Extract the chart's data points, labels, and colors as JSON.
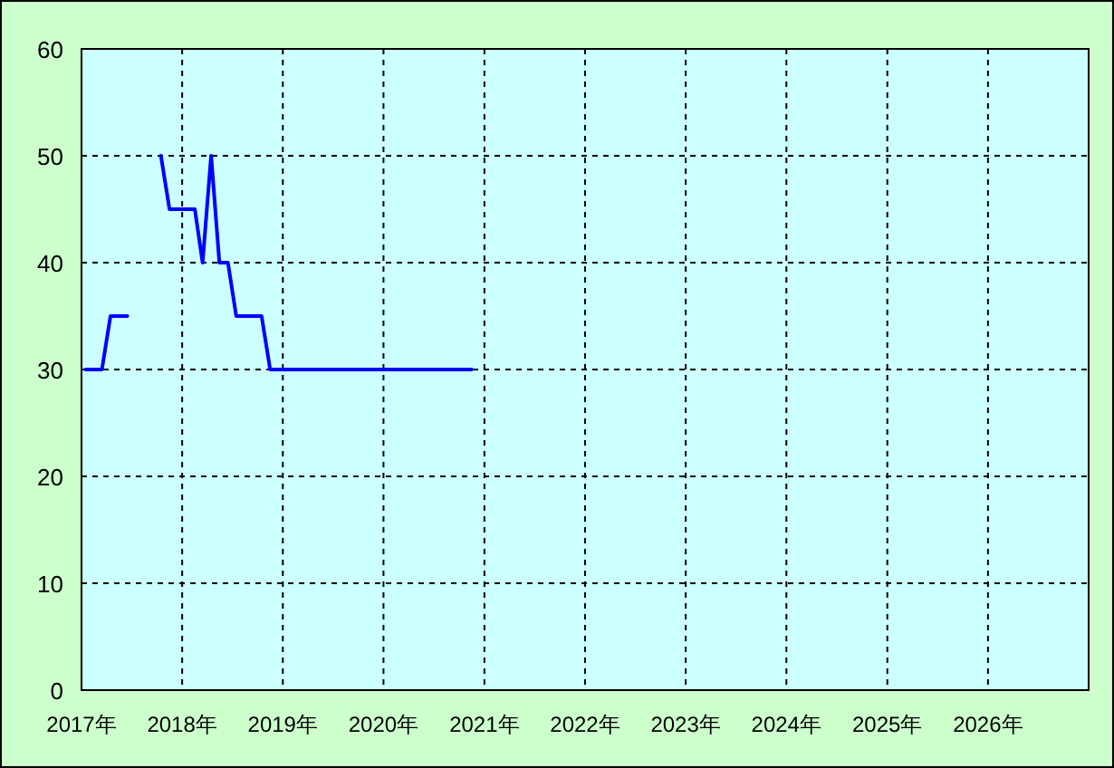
{
  "chart_data": {
    "type": "line",
    "grid": true,
    "marker": "none",
    "line_style": "solid",
    "x": [
      "2017-01-16",
      "2017-02-16",
      "2017-03-16",
      "2017-04-16",
      "2017-05-16",
      "2017-06-16",
      "2017-07-16",
      "2017-08-16",
      "2017-09-16",
      "2017-10-16",
      "2017-11-16",
      "2017-12-16",
      "2018-01-16",
      "2018-02-16",
      "2018-03-16",
      "2018-04-16",
      "2018-05-16",
      "2018-06-16",
      "2018-07-16",
      "2018-08-16",
      "2018-09-16",
      "2018-10-16",
      "2018-11-16",
      "2018-12-16",
      "2019-01-16",
      "2019-02-16",
      "2019-03-16",
      "2019-04-16",
      "2019-05-16",
      "2019-06-16",
      "2019-07-16",
      "2019-08-16",
      "2019-09-16",
      "2019-10-16",
      "2019-11-16",
      "2019-12-16",
      "2020-01-16",
      "2020-02-16",
      "2020-03-16",
      "2020-04-16",
      "2020-05-16",
      "2020-06-16",
      "2020-07-16",
      "2020-08-16",
      "2020-09-16",
      "2020-10-16",
      "2020-11-16"
    ],
    "series": [
      {
        "color": "#0000ff",
        "values": [
          30,
          30,
          30,
          35,
          35,
          35,
          null,
          null,
          null,
          50,
          45,
          45,
          45,
          45,
          40,
          50,
          40,
          40,
          35,
          35,
          35,
          35,
          30,
          30,
          30,
          30,
          30,
          30,
          30,
          30,
          30,
          30,
          30,
          30,
          30,
          30,
          30,
          30,
          30,
          30,
          30,
          30,
          30,
          30,
          30,
          30,
          30
        ]
      }
    ],
    "xlim": [
      "2017-01-01",
      "2027-01-01"
    ],
    "xticks": [
      {
        "value": "2017-01-01",
        "label": "2017年"
      },
      {
        "value": "2018-01-01",
        "label": "2018年"
      },
      {
        "value": "2019-01-01",
        "label": "2019年"
      },
      {
        "value": "2020-01-01",
        "label": "2020年"
      },
      {
        "value": "2021-01-01",
        "label": "2021年"
      },
      {
        "value": "2022-01-01",
        "label": "2022年"
      },
      {
        "value": "2023-01-01",
        "label": "2023年"
      },
      {
        "value": "2024-01-01",
        "label": "2024年"
      },
      {
        "value": "2025-01-01",
        "label": "2025年"
      },
      {
        "value": "2026-01-01",
        "label": "2026年"
      }
    ],
    "ylim": [
      0,
      60
    ],
    "yticks": [
      0,
      10,
      20,
      30,
      40,
      50,
      60
    ]
  }
}
